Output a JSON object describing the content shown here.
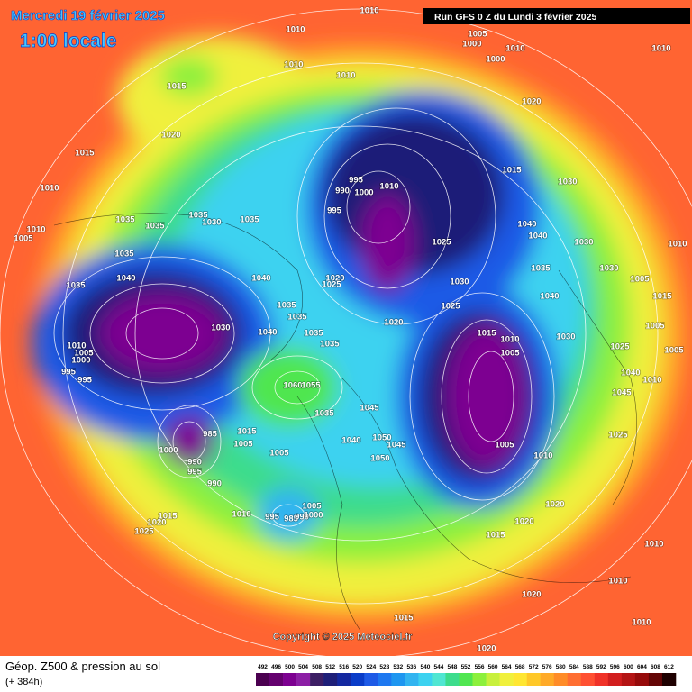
{
  "header": {
    "title": "Mercredi 19 février 2025",
    "time": "1:00 locale",
    "run": "Run GFS 0 Z du Lundi 3 février 2025"
  },
  "footer": {
    "copyright": "Copyright © 2025 Meteociel.fr"
  },
  "legend": {
    "title": "Géop. Z500 & pression au sol",
    "subtitle": "(+ 384h)",
    "ticks": [
      492,
      496,
      500,
      504,
      508,
      512,
      516,
      520,
      524,
      528,
      532,
      536,
      540,
      544,
      548,
      552,
      556,
      560,
      564,
      568,
      572,
      576,
      580,
      584,
      588,
      592,
      596,
      600,
      604,
      608,
      612
    ],
    "colors": [
      "#4b0050",
      "#64006e",
      "#7d0091",
      "#8c1ea5",
      "#3c1e64",
      "#1e1e78",
      "#1428a0",
      "#0a3cc8",
      "#1e5ae6",
      "#1e78f0",
      "#1e96f0",
      "#32b4f0",
      "#3cd2f0",
      "#50e6d2",
      "#3cdc8c",
      "#50e650",
      "#8cf03c",
      "#c8f03c",
      "#f0f03c",
      "#ffe632",
      "#ffc828",
      "#ffaa28",
      "#ff8c28",
      "#ff6e32",
      "#ff5032",
      "#f03228",
      "#d21e1e",
      "#b41414",
      "#960a0a",
      "#640505",
      "#1e0000"
    ]
  },
  "isobars": {
    "labels": [
      "1010",
      "1010",
      "1005",
      "1000",
      "1010",
      "1000",
      "1010",
      "1010",
      "1010",
      "1015",
      "1020",
      "1015",
      "1020",
      "1015",
      "1030",
      "1010",
      "995",
      "990",
      "1000",
      "1010",
      "995",
      "1035",
      "1035",
      "1035",
      "1030",
      "1035",
      "1010",
      "1005",
      "1040",
      "1040",
      "1025",
      "1030",
      "1010",
      "1035",
      "1040",
      "1040",
      "1035",
      "1020",
      "1025",
      "1035",
      "1030",
      "1030",
      "1005",
      "1040",
      "1015",
      "1025",
      "1035",
      "1035",
      "1030",
      "1040",
      "1035",
      "1020",
      "1035",
      "1015",
      "1010",
      "1030",
      "1005",
      "1025",
      "1005",
      "1010",
      "1005",
      "1000",
      "995",
      "995",
      "1005",
      "1040",
      "1045",
      "1010",
      "1060",
      "1055",
      "1035",
      "1045",
      "1015",
      "1005",
      "985",
      "1000",
      "990",
      "995",
      "1005",
      "1040",
      "1050",
      "1045",
      "1050",
      "1005",
      "1010",
      "1025",
      "990",
      "1010",
      "995",
      "985",
      "990",
      "1000",
      "1005",
      "1015",
      "1020",
      "1025",
      "1020",
      "1020",
      "1015",
      "1010",
      "1020",
      "1010",
      "1015",
      "1010",
      "1020"
    ]
  }
}
